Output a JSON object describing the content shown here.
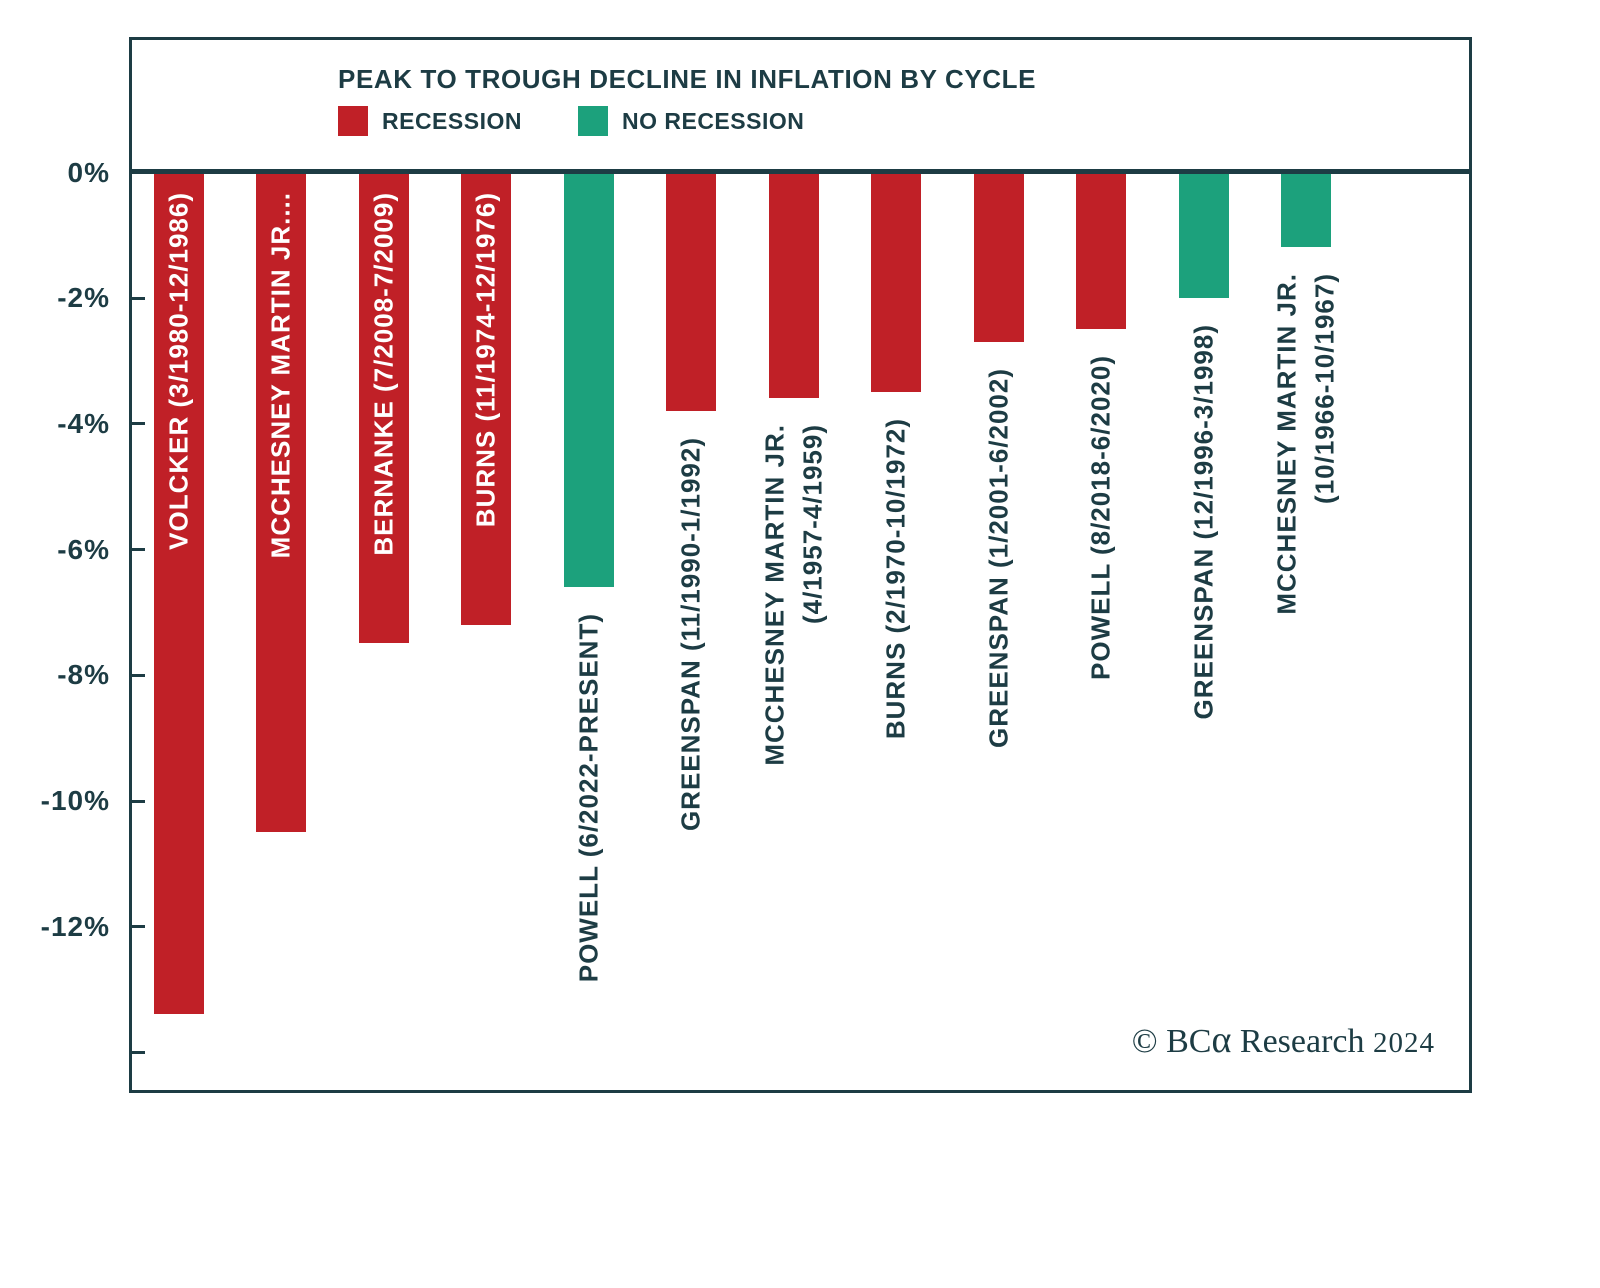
{
  "chart_data": {
    "type": "bar",
    "title": "PEAK TO TROUGH DECLINE IN INFLATION BY CYCLE",
    "legend": [
      {
        "label": "RECESSION",
        "color": "#c02027"
      },
      {
        "label": "NO RECESSION",
        "color": "#1ca17c"
      }
    ],
    "y_ticks": [
      "0%",
      "-2%",
      "-4%",
      "-6%",
      "-8%",
      "-10%",
      "-12%"
    ],
    "ylim": [
      -14.7,
      0
    ],
    "grid": false,
    "legend_position": "top-left",
    "bars": [
      {
        "label_lines": [
          "VOLCKER (3/1980-12/1986)"
        ],
        "value": -13.4,
        "recession": true,
        "label_placement": "inside"
      },
      {
        "label_lines": [
          "MCCHESNEY MARTIN JR...."
        ],
        "value": -10.5,
        "recession": true,
        "label_placement": "inside"
      },
      {
        "label_lines": [
          "BERNANKE (7/2008-7/2009)"
        ],
        "value": -7.5,
        "recession": true,
        "label_placement": "inside"
      },
      {
        "label_lines": [
          "BURNS (11/1974-12/1976)"
        ],
        "value": -7.2,
        "recession": true,
        "label_placement": "inside"
      },
      {
        "label_lines": [
          "POWELL (6/2022-PRESENT)"
        ],
        "value": -6.6,
        "recession": false,
        "label_placement": "below"
      },
      {
        "label_lines": [
          "GREENSPAN (11/1990-1/1992)"
        ],
        "value": -3.8,
        "recession": true,
        "label_placement": "below"
      },
      {
        "label_lines": [
          "MCCHESNEY MARTIN JR.",
          "(4/1957-4/1959)"
        ],
        "value": -3.6,
        "recession": true,
        "label_placement": "below"
      },
      {
        "label_lines": [
          "BURNS (2/1970-10/1972)"
        ],
        "value": -3.5,
        "recession": true,
        "label_placement": "below"
      },
      {
        "label_lines": [
          "GREENSPAN (1/2001-6/2002)"
        ],
        "value": -2.7,
        "recession": true,
        "label_placement": "below"
      },
      {
        "label_lines": [
          "POWELL (8/2018-6/2020)"
        ],
        "value": -2.5,
        "recession": true,
        "label_placement": "below"
      },
      {
        "label_lines": [
          "GREENSPAN (12/1996-3/1998)"
        ],
        "value": -2.0,
        "recession": false,
        "label_placement": "below"
      },
      {
        "label_lines": [
          "MCCHESNEY MARTIN JR.",
          "(10/1966-10/1967)"
        ],
        "value": -1.2,
        "recession": false,
        "label_placement": "below"
      }
    ]
  },
  "footer": {
    "copyright_prefix": "© BC",
    "copyright_alpha": "α",
    "copyright_rest": " Research",
    "copyright_year": "2024"
  },
  "colors": {
    "text": "#1d3c44",
    "recession": "#c02027",
    "no_recession": "#1ca17c"
  }
}
